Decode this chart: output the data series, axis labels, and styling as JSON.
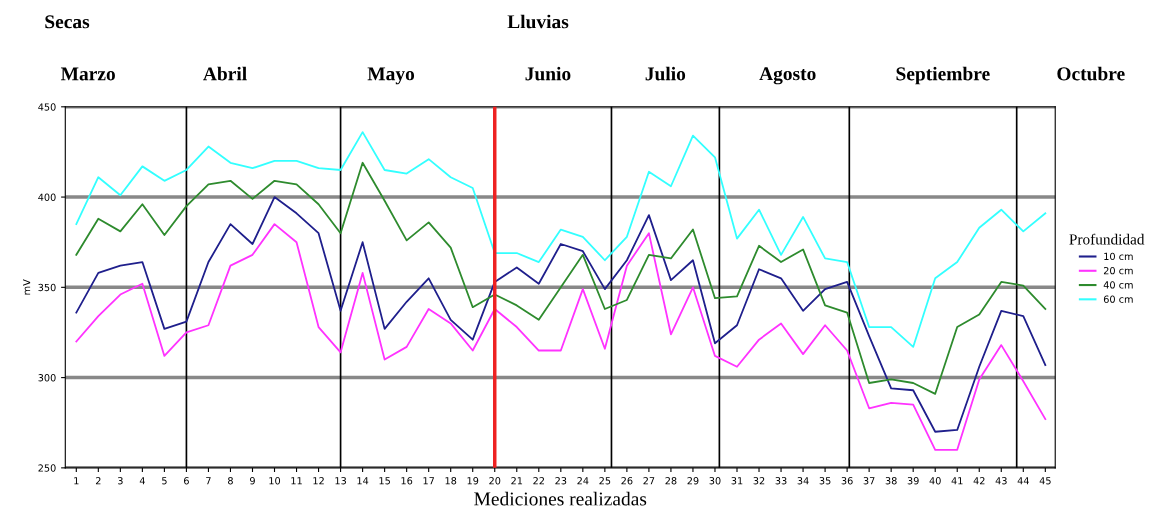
{
  "chart_data": {
    "type": "line",
    "xlabel": "Mediciones realizadas",
    "ylabel": "mV",
    "legend_title": "Profundidad",
    "x": [
      1,
      2,
      3,
      4,
      5,
      6,
      7,
      8,
      9,
      10,
      11,
      12,
      13,
      14,
      15,
      16,
      17,
      18,
      19,
      20,
      21,
      22,
      23,
      24,
      25,
      26,
      27,
      28,
      29,
      30,
      31,
      32,
      33,
      34,
      35,
      36,
      37,
      38,
      39,
      40,
      41,
      42,
      43,
      44,
      45
    ],
    "series": [
      {
        "name": "10 cm",
        "color": "#1f1f8c",
        "values": [
          336,
          358,
          362,
          364,
          327,
          331,
          364,
          385,
          374,
          400,
          391,
          380,
          337,
          375,
          327,
          342,
          355,
          332,
          321,
          353,
          361,
          352,
          374,
          370,
          349,
          365,
          390,
          354,
          365,
          319,
          329,
          360,
          355,
          337,
          349,
          353,
          323,
          294,
          293,
          270,
          271,
          306,
          337,
          334,
          307
        ]
      },
      {
        "name": "20 cm",
        "color": "#ff33ff",
        "values": [
          320,
          334,
          346,
          352,
          312,
          325,
          329,
          362,
          368,
          385,
          375,
          328,
          314,
          358,
          310,
          317,
          338,
          330,
          315,
          338,
          328,
          315,
          315,
          349,
          316,
          362,
          380,
          324,
          350,
          312,
          306,
          321,
          330,
          313,
          329,
          315,
          283,
          286,
          285,
          260,
          260,
          299,
          318,
          298,
          277
        ]
      },
      {
        "name": "40 cm",
        "color": "#2e8b2e",
        "values": [
          368,
          388,
          381,
          396,
          379,
          395,
          407,
          409,
          399,
          409,
          407,
          396,
          380,
          419,
          398,
          376,
          386,
          372,
          339,
          346,
          340,
          332,
          350,
          368,
          338,
          343,
          368,
          366,
          382,
          344,
          345,
          373,
          364,
          371,
          340,
          336,
          297,
          299,
          297,
          291,
          328,
          335,
          353,
          351,
          338
        ]
      },
      {
        "name": "60 cm",
        "color": "#33ffff",
        "values": [
          385,
          411,
          401,
          417,
          409,
          415,
          428,
          419,
          416,
          420,
          420,
          416,
          415,
          436,
          415,
          413,
          421,
          411,
          405,
          369,
          369,
          364,
          382,
          378,
          365,
          378,
          414,
          406,
          434,
          422,
          377,
          393,
          368,
          389,
          366,
          364,
          328,
          328,
          317,
          355,
          364,
          383,
          393,
          381,
          391
        ]
      }
    ],
    "xlim": [
      0.5,
      45.45
    ],
    "ylim": [
      250,
      450
    ],
    "xticks": [
      1,
      2,
      3,
      4,
      5,
      6,
      7,
      8,
      9,
      10,
      11,
      12,
      13,
      14,
      15,
      16,
      17,
      18,
      19,
      20,
      21,
      22,
      23,
      24,
      25,
      26,
      27,
      28,
      29,
      30,
      31,
      32,
      33,
      34,
      35,
      36,
      37,
      38,
      39,
      40,
      41,
      42,
      43,
      44,
      45
    ],
    "yticks": [
      250,
      300,
      350,
      400,
      450
    ],
    "grid": "y",
    "legend": "right",
    "marker": "none",
    "line_style": "solid",
    "ref_lines": [
      {
        "axis": "x",
        "value": 6,
        "color": "#000000"
      },
      {
        "axis": "x",
        "value": 13,
        "color": "#000000"
      },
      {
        "axis": "x",
        "value": 20,
        "color": "#ee2222"
      },
      {
        "axis": "x",
        "value": 25.3,
        "color": "#000000"
      },
      {
        "axis": "x",
        "value": 30.2,
        "color": "#000000"
      },
      {
        "axis": "x",
        "value": 36.1,
        "color": "#000000"
      },
      {
        "axis": "x",
        "value": 43.7,
        "color": "#000000"
      }
    ],
    "annotations": [
      "Secas",
      "Lluvias",
      "Marzo",
      "Abril",
      "Mayo",
      "Junio",
      "Julio",
      "Agosto",
      "Septiembre",
      "Octubre"
    ]
  }
}
